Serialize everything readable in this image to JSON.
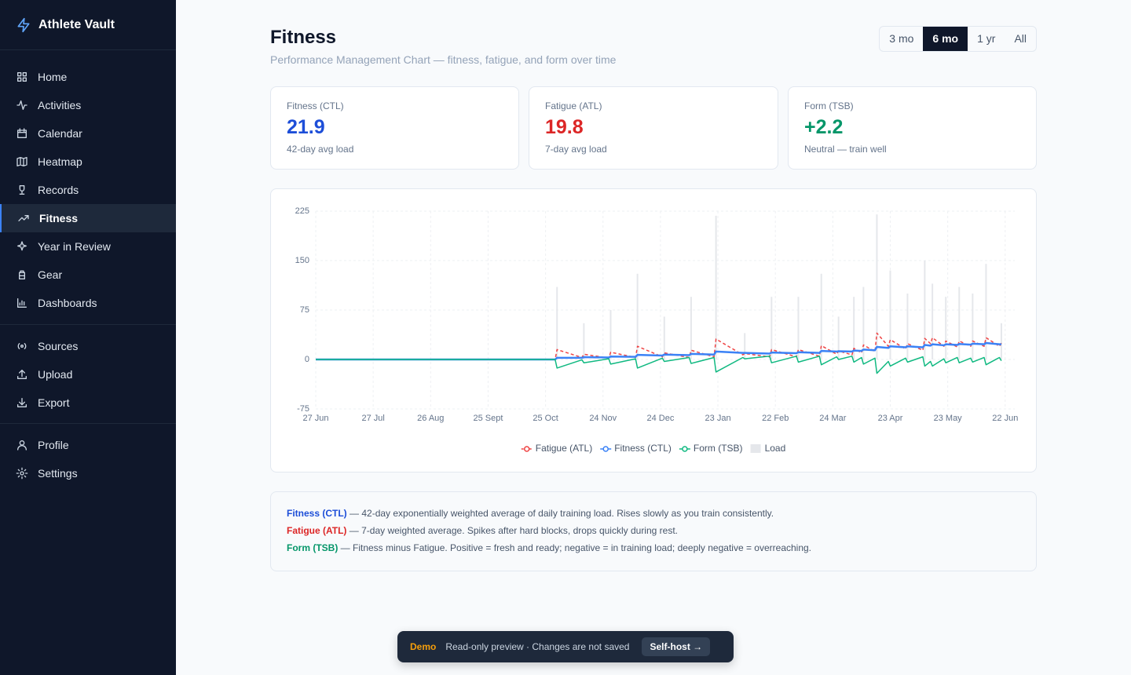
{
  "sidebar": {
    "brand": "Athlete Vault",
    "groups": [
      [
        "Home",
        "Activities",
        "Calendar",
        "Heatmap",
        "Records",
        "Fitness",
        "Year in Review",
        "Gear",
        "Dashboards"
      ],
      [
        "Sources",
        "Upload",
        "Export"
      ],
      [
        "Profile",
        "Settings"
      ]
    ]
  },
  "header": {
    "title": "Fitness",
    "subtitle": "Performance Management Chart — fitness, fatigue, and form over time",
    "ranges": [
      "3 mo",
      "6 mo",
      "1 yr",
      "All"
    ]
  },
  "stats": [
    {
      "label": "Fitness (CTL)",
      "value": "21.9",
      "note": "42-day avg load"
    },
    {
      "label": "Fatigue (ATL)",
      "value": "19.8",
      "note": "7-day avg load"
    },
    {
      "label": "Form (TSB)",
      "value": "+2.2",
      "note": "Neutral — train well"
    }
  ],
  "chart_data": {
    "type": "line",
    "x": [
      0,
      125,
      126,
      139,
      140,
      153,
      154,
      167,
      168,
      181,
      182,
      195,
      196,
      208,
      209,
      223,
      224,
      237,
      238,
      251,
      252,
      263,
      264,
      272,
      273,
      280,
      281,
      285,
      286,
      292,
      293,
      299,
      300,
      308,
      309,
      317,
      318,
      321,
      322,
      328,
      329,
      335,
      336,
      342,
      343,
      349,
      350,
      357,
      358
    ],
    "series": [
      {
        "name": "Fatigue (ATL)",
        "color": "#ef4444",
        "dashed": true,
        "values": [
          0,
          0,
          15,
          3,
          8,
          2,
          11,
          3,
          20,
          4,
          10,
          3,
          14,
          4,
          31,
          7,
          9,
          4,
          15,
          4,
          15,
          5,
          21,
          8,
          13,
          7,
          17,
          10,
          22,
          12,
          40,
          20,
          30,
          16,
          24,
          14,
          32,
          24,
          33,
          20,
          28,
          19,
          28,
          20,
          28,
          20,
          33,
          20,
          25
        ]
      },
      {
        "name": "Fitness (CTL)",
        "color": "#3b82f6",
        "values": [
          0,
          0,
          2.6,
          2.5,
          3.5,
          3,
          4.5,
          4,
          7,
          6,
          7.5,
          6.5,
          8.5,
          7.5,
          12,
          10,
          10,
          9,
          10.5,
          9.5,
          11,
          10,
          13,
          12,
          12.5,
          12,
          13.5,
          13,
          15,
          14,
          19,
          17.5,
          20,
          18.5,
          20,
          18.5,
          22,
          21,
          23,
          21.5,
          23,
          22,
          23.5,
          22.5,
          24,
          23,
          25,
          23,
          23
        ]
      },
      {
        "name": "Form (TSB)",
        "color": "#10b981",
        "values": [
          0,
          0,
          -13,
          -0.5,
          -5,
          1,
          -7,
          1,
          -13,
          2,
          -3,
          3,
          -6,
          3,
          -19,
          3,
          1,
          5,
          -5,
          5,
          -4,
          5,
          -8,
          4,
          0,
          5,
          -4,
          3,
          -7,
          2,
          -21,
          -3,
          -10,
          2,
          -4,
          4,
          -10,
          -3,
          -10,
          1,
          -5,
          3,
          -5,
          2,
          -4,
          3,
          -8,
          3,
          -2
        ]
      },
      {
        "name": "Load",
        "color": "#e5e7eb",
        "type": "bar",
        "values": [
          null,
          null,
          110,
          null,
          55,
          null,
          75,
          null,
          130,
          null,
          65,
          null,
          95,
          null,
          218,
          null,
          40,
          null,
          95,
          null,
          95,
          null,
          130,
          null,
          65,
          null,
          95,
          null,
          110,
          null,
          220,
          null,
          135,
          null,
          100,
          null,
          150,
          null,
          115,
          null,
          95,
          null,
          110,
          null,
          100,
          null,
          145,
          null,
          55
        ]
      }
    ],
    "xlim": [
      0,
      365
    ],
    "xticks": [
      {
        "value": 0,
        "label": "27 Jun"
      },
      {
        "value": 30,
        "label": "27 Jul"
      },
      {
        "value": 60,
        "label": "26 Aug"
      },
      {
        "value": 90,
        "label": "25 Sept"
      },
      {
        "value": 120,
        "label": "25 Oct"
      },
      {
        "value": 150,
        "label": "24 Nov"
      },
      {
        "value": 180,
        "label": "24 Dec"
      },
      {
        "value": 210,
        "label": "23 Jan"
      },
      {
        "value": 240,
        "label": "22 Feb"
      },
      {
        "value": 270,
        "label": "24 Mar"
      },
      {
        "value": 300,
        "label": "23 Apr"
      },
      {
        "value": 330,
        "label": "23 May"
      },
      {
        "value": 360,
        "label": "22 Jun"
      }
    ],
    "ylim": [
      -75,
      225
    ],
    "yticks": [
      -75,
      0,
      75,
      150,
      225
    ],
    "grid": true,
    "legend": "bottom"
  },
  "info": [
    {
      "term": "Fitness (CTL)",
      "text": "— 42-day exponentially weighted average of daily training load. Rises slowly as you train consistently."
    },
    {
      "term": "Fatigue (ATL)",
      "text": "— 7-day weighted average. Spikes after hard blocks, drops quickly during rest."
    },
    {
      "term": "Form (TSB)",
      "text": "— Fitness minus Fatigue. Positive = fresh and ready; negative = in training load; deeply negative = overreaching."
    }
  ],
  "demo": {
    "tag": "Demo",
    "text": "Read-only preview · Changes are not saved",
    "button": "Self-host →"
  }
}
